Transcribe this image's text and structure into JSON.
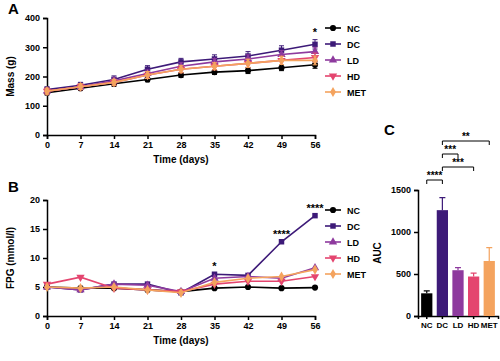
{
  "chart_data": [
    {
      "type": "line",
      "title": "A",
      "xlabel": "Time (days)",
      "ylabel": "Mass (g)",
      "x": [
        0,
        7,
        14,
        21,
        28,
        35,
        42,
        49,
        56
      ],
      "xlim": [
        0,
        56
      ],
      "xticks": [
        0,
        7,
        14,
        21,
        28,
        35,
        42,
        49,
        56
      ],
      "ylim": [
        0,
        400
      ],
      "yticks": [
        0,
        100,
        200,
        300,
        400
      ],
      "grid": false,
      "legend": "right",
      "series": [
        {
          "name": "NC",
          "color": "#000000",
          "marker": "circle",
          "values": [
            145,
            160,
            175,
            190,
            205,
            215,
            220,
            230,
            240
          ],
          "errors": [
            8,
            8,
            8,
            8,
            8,
            8,
            10,
            10,
            12
          ]
        },
        {
          "name": "DC",
          "color": "#3d1a78",
          "marker": "square",
          "values": [
            155,
            170,
            190,
            225,
            250,
            260,
            270,
            290,
            310
          ],
          "errors": [
            10,
            10,
            12,
            12,
            12,
            14,
            15,
            15,
            16
          ]
        },
        {
          "name": "LD",
          "color": "#8e3a9e",
          "marker": "triangle-up",
          "values": [
            150,
            165,
            185,
            210,
            235,
            250,
            260,
            275,
            285
          ],
          "errors": [
            10,
            10,
            10,
            12,
            12,
            12,
            14,
            14,
            15
          ]
        },
        {
          "name": "HD",
          "color": "#e4456f",
          "marker": "triangle-down",
          "values": [
            150,
            165,
            180,
            205,
            225,
            235,
            245,
            255,
            265
          ],
          "errors": [
            10,
            10,
            10,
            12,
            12,
            12,
            14,
            14,
            15
          ]
        },
        {
          "name": "MET",
          "color": "#f4a35e",
          "marker": "diamond",
          "values": [
            150,
            165,
            180,
            205,
            225,
            235,
            245,
            255,
            255
          ],
          "errors": [
            10,
            10,
            10,
            12,
            12,
            12,
            14,
            14,
            15
          ]
        }
      ],
      "annotations": [
        {
          "x": 56,
          "label": "*"
        }
      ]
    },
    {
      "type": "line",
      "title": "B",
      "xlabel": "Time (days)",
      "ylabel": "FPG (mmol/l)",
      "x": [
        0,
        7,
        14,
        21,
        28,
        35,
        42,
        49,
        56
      ],
      "xlim": [
        0,
        56
      ],
      "xticks": [
        0,
        7,
        14,
        21,
        28,
        35,
        42,
        49,
        56
      ],
      "ylim": [
        0,
        20
      ],
      "yticks": [
        0,
        5,
        10,
        15,
        20
      ],
      "grid": false,
      "legend": "right",
      "series": [
        {
          "name": "NC",
          "color": "#000000",
          "marker": "circle",
          "values": [
            5.0,
            4.8,
            4.8,
            4.5,
            4.2,
            4.8,
            5.0,
            4.8,
            4.9
          ]
        },
        {
          "name": "DC",
          "color": "#3d1a78",
          "marker": "square",
          "values": [
            5.0,
            4.5,
            5.5,
            5.5,
            4.0,
            7.2,
            7.0,
            12.8,
            17.3
          ]
        },
        {
          "name": "LD",
          "color": "#8e3a9e",
          "marker": "triangle-up",
          "values": [
            5.0,
            4.5,
            5.5,
            5.3,
            4.2,
            6.5,
            6.8,
            6.5,
            8.3
          ]
        },
        {
          "name": "HD",
          "color": "#e4456f",
          "marker": "triangle-down",
          "values": [
            5.5,
            6.7,
            4.8,
            4.5,
            4.2,
            5.5,
            6.0,
            6.0,
            6.8
          ]
        },
        {
          "name": "MET",
          "color": "#f4a35e",
          "marker": "diamond",
          "values": [
            5.0,
            4.8,
            5.0,
            4.5,
            4.0,
            5.8,
            6.5,
            6.8,
            8.0
          ]
        }
      ],
      "annotations": [
        {
          "x": 35,
          "label": "*"
        },
        {
          "x": 49,
          "label": "****"
        },
        {
          "x": 56,
          "label": "****"
        }
      ]
    },
    {
      "type": "bar",
      "title": "C",
      "ylabel": "AUC",
      "categories": [
        "NC",
        "DC",
        "LD",
        "HD",
        "MET"
      ],
      "values": [
        270,
        1260,
        545,
        470,
        655
      ],
      "errors": [
        30,
        150,
        30,
        40,
        160
      ],
      "colors": [
        "#000000",
        "#3d1a78",
        "#8e3a9e",
        "#e4456f",
        "#f4a35e"
      ],
      "ylim": [
        0,
        1500
      ],
      "yticks": [
        0,
        500,
        1000,
        1500
      ],
      "grid": false,
      "annotations": [
        {
          "from": "NC",
          "to": "DC",
          "label": "****"
        },
        {
          "from": "DC",
          "to": "HD",
          "label": "***"
        },
        {
          "from": "DC",
          "to": "LD",
          "label": "***"
        },
        {
          "from": "DC",
          "to": "MET",
          "label": "**"
        }
      ]
    }
  ]
}
